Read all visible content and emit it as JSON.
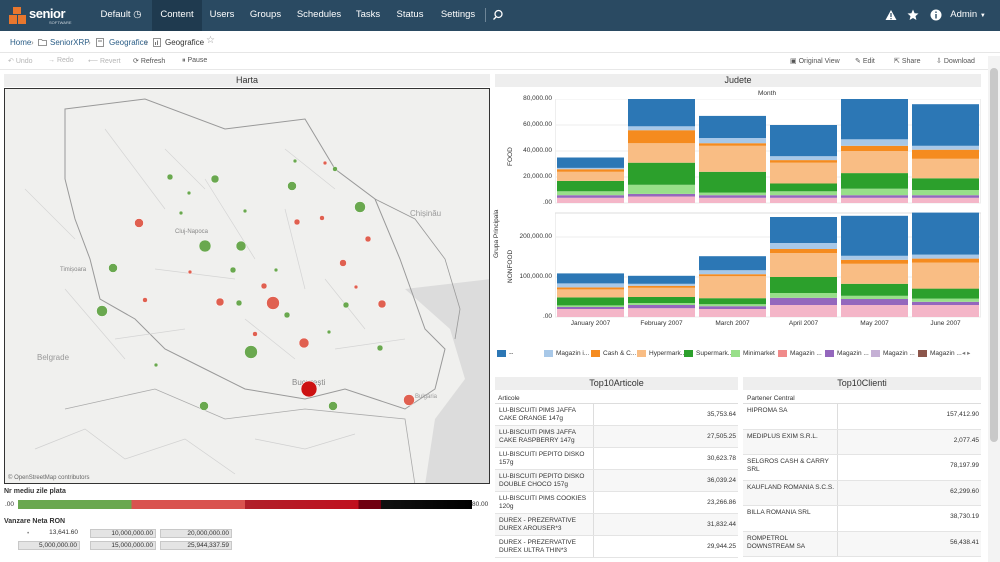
{
  "nav": {
    "logo_text": "senior",
    "logo_sub": "SOFTWARE",
    "items": [
      "Default",
      "Content",
      "Users",
      "Groups",
      "Schedules",
      "Tasks",
      "Status",
      "Settings"
    ],
    "active": "Content",
    "user": "Admin"
  },
  "breadcrumb": [
    "Home",
    "SeniorXRP",
    "Geografice",
    "Geografice"
  ],
  "toolbar": {
    "left": [
      "Undo",
      "Redo",
      "Revert",
      "Refresh",
      "Pause"
    ],
    "right": [
      "Original View",
      "Edit",
      "Share",
      "Download"
    ]
  },
  "map_panel": {
    "title": "Harta",
    "city_labels": [
      "Cluj-Napoca",
      "Timișoara",
      "Chișinău",
      "Belgrade",
      "București",
      "Bulgaria"
    ],
    "attribution": "© OpenStreetMap contributors",
    "color_legend_title": "Nr mediu zile plata",
    "color_legend_min": ".00",
    "color_legend_max": "80.00",
    "size_legend_title": "Vanzare Neta RON",
    "size_legend_values": [
      "13,641.60",
      "10,000,000.00",
      "20,000,000.00",
      "5,000,000.00",
      "15,000,000.00",
      "25,944,337.59"
    ]
  },
  "chart_panel": {
    "title": "Judete",
    "column_header": "Month",
    "row_header": "Grupa Principala",
    "chart_data": {
      "type": "bar",
      "stacked": true,
      "categories": [
        "January 2007",
        "February 2007",
        "March 2007",
        "April 2007",
        "May 2007",
        "June 2007"
      ],
      "facets": [
        {
          "name": "FOOD",
          "ylim": [
            0,
            80000
          ],
          "ticks": [
            "80,000.00",
            "60,000.00",
            "40,000.00",
            "20,000.00",
            ".00"
          ],
          "series": [
            {
              "name": "Magazin pink",
              "values": [
                4000,
                5000,
                4000,
                4000,
                4000,
                4000
              ]
            },
            {
              "name": "Magazin violet",
              "values": [
                2000,
                2000,
                2000,
                2000,
                2000,
                2000
              ]
            },
            {
              "name": "Minimarket",
              "values": [
                3000,
                7000,
                2000,
                3000,
                5000,
                4000
              ]
            },
            {
              "name": "Supermarket",
              "values": [
                8000,
                17000,
                16000,
                6000,
                12000,
                9000
              ]
            },
            {
              "name": "Hypermarket",
              "values": [
                7000,
                15000,
                20000,
                16000,
                17000,
                15000
              ]
            },
            {
              "name": "Cash & Carry",
              "values": [
                2000,
                10000,
                2000,
                2000,
                4000,
                7000
              ]
            },
            {
              "name": "Magazin light",
              "values": [
                1000,
                3000,
                4000,
                3000,
                5000,
                3000
              ]
            },
            {
              "name": "--",
              "values": [
                8000,
                23000,
                17000,
                24000,
                35000,
                32000
              ]
            }
          ]
        },
        {
          "name": "NONFOOD",
          "ylim": [
            0,
            260000
          ],
          "ticks": [
            "200,000.00",
            "100,000.00",
            ".00"
          ],
          "series": [
            {
              "name": "Magazin pink",
              "values": [
                20000,
                22000,
                20000,
                30000,
                30000,
                30000
              ]
            },
            {
              "name": "Magazin violet",
              "values": [
                5000,
                8000,
                7000,
                18000,
                15000,
                8000
              ]
            },
            {
              "name": "Minimarket",
              "values": [
                4000,
                5000,
                5000,
                12000,
                8000,
                8000
              ]
            },
            {
              "name": "Supermarket",
              "values": [
                20000,
                15000,
                15000,
                40000,
                30000,
                25000
              ]
            },
            {
              "name": "Hypermarket",
              "values": [
                20000,
                23000,
                55000,
                60000,
                50000,
                65000
              ]
            },
            {
              "name": "Cash & Carry",
              "values": [
                5000,
                5000,
                5000,
                10000,
                10000,
                10000
              ]
            },
            {
              "name": "Magazin light",
              "values": [
                10000,
                5000,
                10000,
                15000,
                10000,
                10000
              ]
            },
            {
              "name": "--",
              "values": [
                25000,
                20000,
                35000,
                65000,
                100000,
                105000
              ]
            }
          ]
        }
      ]
    },
    "legend": [
      {
        "name": "--",
        "color": "#2c77b5"
      },
      {
        "name": "Magazin i...",
        "color": "#a8c8e8"
      },
      {
        "name": "Cash & C...",
        "color": "#f58b1f"
      },
      {
        "name": "Hypermark...",
        "color": "#f9bd84"
      },
      {
        "name": "Supermark...",
        "color": "#2ca02c"
      },
      {
        "name": "Minimarket",
        "color": "#98df8a"
      },
      {
        "name": "Magazin ...",
        "color": "#f08a8a"
      },
      {
        "name": "Magazin ...",
        "color": "#9467bd"
      },
      {
        "name": "Magazin ...",
        "color": "#c5b0d5"
      },
      {
        "name": "Magazin ...",
        "color": "#8c564b"
      }
    ]
  },
  "top_articles": {
    "title": "Top10Articole",
    "header": "Articole",
    "rows": [
      {
        "name": "LU-BISCUITI PIMS JAFFA CAKE ORANGE 147g",
        "value": "35,753.64"
      },
      {
        "name": "LU-BISCUITI PIMS JAFFA CAKE RASPBERRY 147g",
        "value": "27,505.25"
      },
      {
        "name": "LU-BISCUITI PEPITO DISKO 157g",
        "value": "30,623.78"
      },
      {
        "name": "LU-BISCUITI PEPITO DISKO DOUBLE CHOCO 157g",
        "value": "36,039.24"
      },
      {
        "name": "LU-BISCUITI PIMS COOKIES 120g",
        "value": "23,266.86"
      },
      {
        "name": "DUREX - PREZERVATIVE DUREX AROUSER*3",
        "value": "31,832.44"
      },
      {
        "name": "DUREX - PREZERVATIVE DUREX ULTRA THIN*3",
        "value": "29,944.25"
      }
    ]
  },
  "top_clients": {
    "title": "Top10Clienti",
    "header": "Partener Central",
    "rows": [
      {
        "name": "HIPROMA SA",
        "value": "157,412.90"
      },
      {
        "name": "MEDIPLUS EXIM S.R.L.",
        "value": "2,077.45"
      },
      {
        "name": "SELGROS CASH & CARRY SRL",
        "value": "78,197.99"
      },
      {
        "name": "KAUFLAND ROMANIA S.C.S.",
        "value": "62,299.60"
      },
      {
        "name": "BILLA ROMANIA SRL",
        "value": "38,730.19"
      },
      {
        "name": "ROMPETROL DOWNSTREAM SA",
        "value": "56,438.41"
      }
    ]
  },
  "colors": {
    "nav_bg": "#2a4a62",
    "accent": "#e8772e",
    "map_green": "#6aa84f",
    "map_red": "#e06050"
  }
}
